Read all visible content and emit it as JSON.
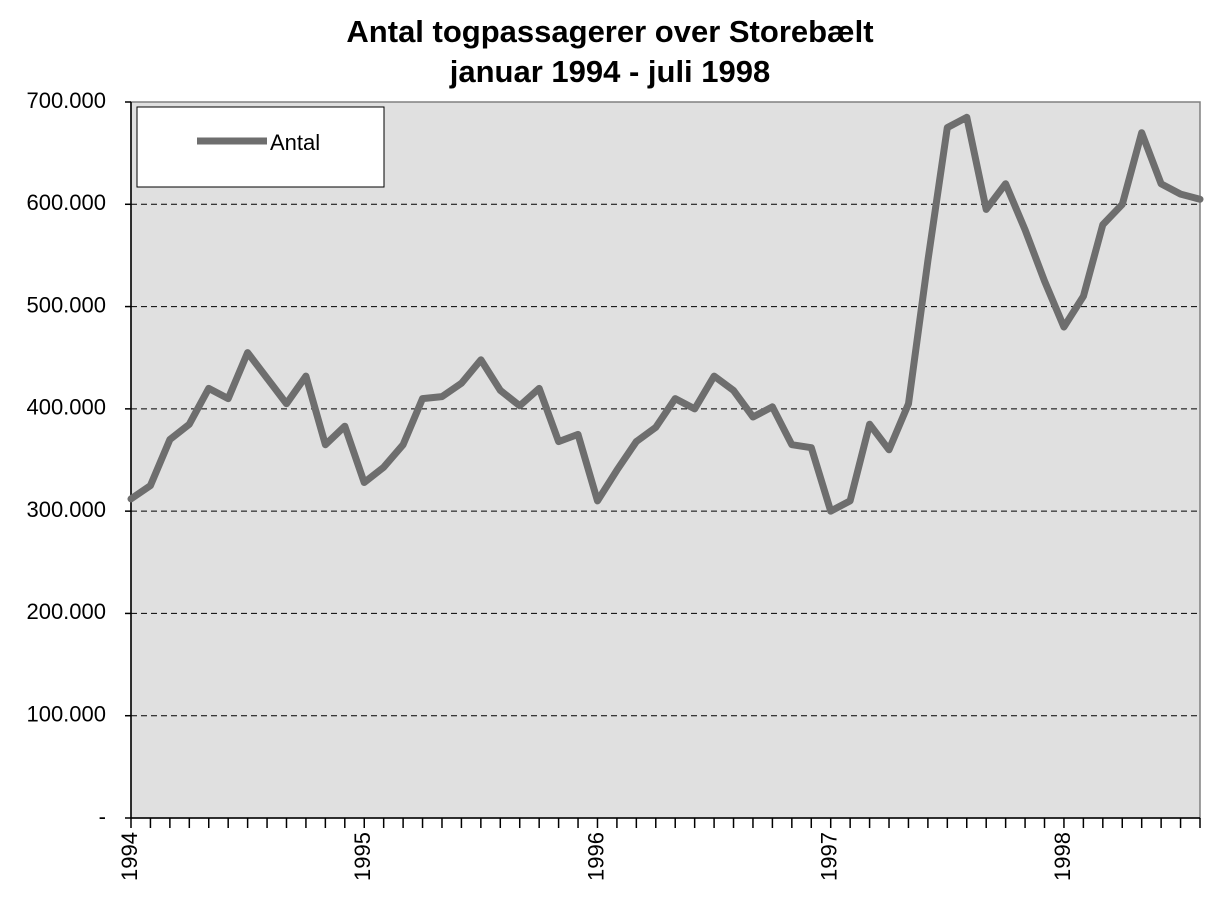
{
  "chart_data": {
    "type": "line",
    "title": "Antal togpassagerer over Storebælt",
    "subtitle": "januar 1994 - juli 1998",
    "categories": [
      "1994",
      null,
      null,
      null,
      null,
      null,
      null,
      null,
      null,
      null,
      null,
      null,
      "1995",
      null,
      null,
      null,
      null,
      null,
      null,
      null,
      null,
      null,
      null,
      null,
      "1996",
      null,
      null,
      null,
      null,
      null,
      null,
      null,
      null,
      null,
      null,
      null,
      "1997",
      null,
      null,
      null,
      null,
      null,
      null,
      null,
      null,
      null,
      null,
      null,
      "1998",
      null,
      null,
      null,
      null,
      null,
      null,
      null
    ],
    "series": [
      {
        "name": "Antal",
        "color": "#6e6e6e",
        "values": [
          312000,
          325000,
          370000,
          385000,
          420000,
          410000,
          455000,
          430000,
          405000,
          432000,
          365000,
          383000,
          328000,
          343000,
          365000,
          410000,
          412000,
          425000,
          448000,
          418000,
          403000,
          420000,
          368000,
          375000,
          310000,
          340000,
          368000,
          382000,
          410000,
          400000,
          432000,
          418000,
          392000,
          402000,
          365000,
          362000,
          300000,
          310000,
          385000,
          360000,
          405000,
          545000,
          675000,
          685000,
          595000,
          620000,
          575000,
          525000,
          480000,
          510000,
          580000,
          600000,
          670000,
          620000,
          610000,
          605000
        ]
      }
    ],
    "ylim": [
      0,
      700000
    ],
    "yticks": [
      {
        "value": 0,
        "label": "-"
      },
      {
        "value": 100000,
        "label": "100.000"
      },
      {
        "value": 200000,
        "label": "200.000"
      },
      {
        "value": 300000,
        "label": "300.000"
      },
      {
        "value": 400000,
        "label": "400.000"
      },
      {
        "value": 500000,
        "label": "500.000"
      },
      {
        "value": 600000,
        "label": "600.000"
      },
      {
        "value": 700000,
        "label": "700.000"
      }
    ],
    "grid": true,
    "legend": "top-left"
  }
}
